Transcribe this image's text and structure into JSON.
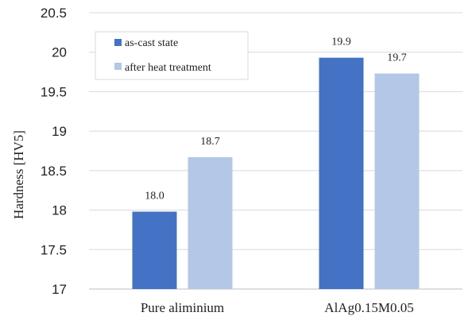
{
  "chart_data": {
    "type": "bar",
    "title": "",
    "xlabel": "",
    "ylabel": "Hardness [HV5]",
    "ylim": [
      17,
      20.5
    ],
    "yticks": [
      "17",
      "17.5",
      "18",
      "18.5",
      "19",
      "19.5",
      "20",
      "20.5"
    ],
    "grid": true,
    "legend_position": "top-left",
    "categories": [
      "Pure aliminium",
      "AlAg0.15M0.05"
    ],
    "series": [
      {
        "name": "as-cast state",
        "color": "#4472C4",
        "values": [
          17.98,
          19.93
        ],
        "labels": [
          "18.0",
          "19.9"
        ]
      },
      {
        "name": "after heat treatment",
        "color": "#B4C7E7",
        "values": [
          18.67,
          19.73
        ],
        "labels": [
          "18.7",
          "19.7"
        ]
      }
    ]
  }
}
